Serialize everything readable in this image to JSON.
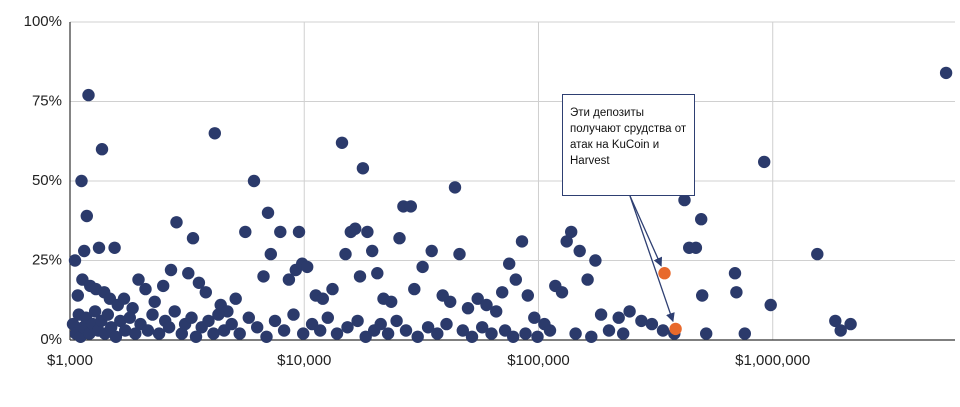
{
  "chart_data": {
    "type": "scatter",
    "title": "",
    "xlabel": "",
    "ylabel": "",
    "x_scale": "log",
    "xlim": [
      1000,
      6000000
    ],
    "ylim": [
      0,
      1
    ],
    "grid": true,
    "x_ticks": [
      {
        "value": 1000,
        "label": "$1,000"
      },
      {
        "value": 10000,
        "label": "$10,000"
      },
      {
        "value": 100000,
        "label": "$100,000"
      },
      {
        "value": 1000000,
        "label": "$1,000,000"
      }
    ],
    "y_ticks": [
      {
        "value": 0,
        "label": "0%"
      },
      {
        "value": 0.25,
        "label": "25%"
      },
      {
        "value": 0.5,
        "label": "50%"
      },
      {
        "value": 0.75,
        "label": "75%"
      },
      {
        "value": 1,
        "label": "100%"
      }
    ],
    "colors": {
      "deposits": "#2b3a6b",
      "highlight": "#e8692c",
      "grid": "#d0d0d0",
      "axis": "#333333"
    },
    "series": [
      {
        "color": "#2b3a6b",
        "points": [
          [
            1200,
            0.77
          ],
          [
            1120,
            0.5
          ],
          [
            1370,
            0.6
          ],
          [
            1180,
            0.39
          ],
          [
            1150,
            0.28
          ],
          [
            1050,
            0.25
          ],
          [
            1550,
            0.29
          ],
          [
            1330,
            0.29
          ],
          [
            1080,
            0.14
          ],
          [
            1130,
            0.19
          ],
          [
            1220,
            0.17
          ],
          [
            1290,
            0.16
          ],
          [
            1400,
            0.15
          ],
          [
            1480,
            0.13
          ],
          [
            1600,
            0.11
          ],
          [
            1700,
            0.13
          ],
          [
            1850,
            0.1
          ],
          [
            1960,
            0.19
          ],
          [
            2100,
            0.16
          ],
          [
            2300,
            0.12
          ],
          [
            2500,
            0.17
          ],
          [
            2700,
            0.22
          ],
          [
            2850,
            0.37
          ],
          [
            3200,
            0.21
          ],
          [
            3350,
            0.32
          ],
          [
            3550,
            0.18
          ],
          [
            3800,
            0.15
          ],
          [
            4150,
            0.65
          ],
          [
            4400,
            0.11
          ],
          [
            4700,
            0.09
          ],
          [
            5100,
            0.13
          ],
          [
            5600,
            0.34
          ],
          [
            6100,
            0.5
          ],
          [
            6700,
            0.2
          ],
          [
            7000,
            0.4
          ],
          [
            7200,
            0.27
          ],
          [
            7900,
            0.34
          ],
          [
            8600,
            0.19
          ],
          [
            9200,
            0.22
          ],
          [
            9500,
            0.34
          ],
          [
            9800,
            0.24
          ],
          [
            10300,
            0.23
          ],
          [
            11200,
            0.14
          ],
          [
            12000,
            0.13
          ],
          [
            13200,
            0.16
          ],
          [
            14500,
            0.62
          ],
          [
            15000,
            0.27
          ],
          [
            15800,
            0.34
          ],
          [
            16500,
            0.35
          ],
          [
            17300,
            0.2
          ],
          [
            17800,
            0.54
          ],
          [
            18600,
            0.34
          ],
          [
            19500,
            0.28
          ],
          [
            20500,
            0.21
          ],
          [
            21800,
            0.13
          ],
          [
            23500,
            0.12
          ],
          [
            25500,
            0.32
          ],
          [
            26500,
            0.42
          ],
          [
            28500,
            0.42
          ],
          [
            29500,
            0.16
          ],
          [
            32000,
            0.23
          ],
          [
            35000,
            0.28
          ],
          [
            39000,
            0.14
          ],
          [
            42000,
            0.12
          ],
          [
            44000,
            0.48
          ],
          [
            46000,
            0.27
          ],
          [
            50000,
            0.1
          ],
          [
            55000,
            0.13
          ],
          [
            60000,
            0.11
          ],
          [
            66000,
            0.09
          ],
          [
            70000,
            0.15
          ],
          [
            75000,
            0.24
          ],
          [
            80000,
            0.19
          ],
          [
            85000,
            0.31
          ],
          [
            90000,
            0.14
          ],
          [
            96000,
            0.07
          ],
          [
            106000,
            0.05
          ],
          [
            118000,
            0.17
          ],
          [
            126000,
            0.15
          ],
          [
            132000,
            0.31
          ],
          [
            138000,
            0.34
          ],
          [
            150000,
            0.28
          ],
          [
            162000,
            0.19
          ],
          [
            175000,
            0.25
          ],
          [
            185000,
            0.08
          ],
          [
            200000,
            0.03
          ],
          [
            220000,
            0.07
          ],
          [
            245000,
            0.09
          ],
          [
            275000,
            0.06
          ],
          [
            305000,
            0.05
          ],
          [
            340000,
            0.03
          ],
          [
            380000,
            0.02
          ],
          [
            420000,
            0.44
          ],
          [
            440000,
            0.29
          ],
          [
            470000,
            0.29
          ],
          [
            495000,
            0.38
          ],
          [
            500000,
            0.14
          ],
          [
            520000,
            0.02
          ],
          [
            690000,
            0.21
          ],
          [
            700000,
            0.15
          ],
          [
            760000,
            0.02
          ],
          [
            920000,
            0.56
          ],
          [
            980000,
            0.11
          ],
          [
            1550000,
            0.27
          ],
          [
            1850000,
            0.06
          ],
          [
            1950000,
            0.03
          ],
          [
            2150000,
            0.05
          ],
          [
            5500000,
            0.84
          ],
          [
            1030,
            0.05
          ],
          [
            1060,
            0.02
          ],
          [
            1090,
            0.08
          ],
          [
            1110,
            0.01
          ],
          [
            1140,
            0.04
          ],
          [
            1170,
            0.07
          ],
          [
            1210,
            0.02
          ],
          [
            1250,
            0.05
          ],
          [
            1280,
            0.09
          ],
          [
            1320,
            0.03
          ],
          [
            1360,
            0.06
          ],
          [
            1410,
            0.02
          ],
          [
            1450,
            0.08
          ],
          [
            1500,
            0.04
          ],
          [
            1570,
            0.01
          ],
          [
            1640,
            0.06
          ],
          [
            1720,
            0.03
          ],
          [
            1800,
            0.07
          ],
          [
            1900,
            0.02
          ],
          [
            2000,
            0.05
          ],
          [
            2150,
            0.03
          ],
          [
            2250,
            0.08
          ],
          [
            2400,
            0.02
          ],
          [
            2550,
            0.06
          ],
          [
            2650,
            0.04
          ],
          [
            2800,
            0.09
          ],
          [
            3000,
            0.02
          ],
          [
            3100,
            0.05
          ],
          [
            3300,
            0.07
          ],
          [
            3450,
            0.01
          ],
          [
            3650,
            0.04
          ],
          [
            3900,
            0.06
          ],
          [
            4100,
            0.02
          ],
          [
            4300,
            0.08
          ],
          [
            4550,
            0.03
          ],
          [
            4900,
            0.05
          ],
          [
            5300,
            0.02
          ],
          [
            5800,
            0.07
          ],
          [
            6300,
            0.04
          ],
          [
            6900,
            0.01
          ],
          [
            7500,
            0.06
          ],
          [
            8200,
            0.03
          ],
          [
            9000,
            0.08
          ],
          [
            9900,
            0.02
          ],
          [
            10800,
            0.05
          ],
          [
            11700,
            0.03
          ],
          [
            12600,
            0.07
          ],
          [
            13800,
            0.02
          ],
          [
            15300,
            0.04
          ],
          [
            16900,
            0.06
          ],
          [
            18300,
            0.01
          ],
          [
            19900,
            0.03
          ],
          [
            21200,
            0.05
          ],
          [
            22800,
            0.02
          ],
          [
            24800,
            0.06
          ],
          [
            27200,
            0.03
          ],
          [
            30500,
            0.01
          ],
          [
            33800,
            0.04
          ],
          [
            37000,
            0.02
          ],
          [
            40500,
            0.05
          ],
          [
            47500,
            0.03
          ],
          [
            52000,
            0.01
          ],
          [
            57500,
            0.04
          ],
          [
            63000,
            0.02
          ],
          [
            72000,
            0.03
          ],
          [
            78000,
            0.01
          ],
          [
            88000,
            0.02
          ],
          [
            99000,
            0.01
          ],
          [
            112000,
            0.03
          ],
          [
            144000,
            0.02
          ],
          [
            168000,
            0.01
          ],
          [
            230000,
            0.02
          ]
        ]
      },
      {
        "color": "#e8692c",
        "points": [
          [
            345000,
            0.21
          ],
          [
            385000,
            0.035
          ]
        ]
      }
    ],
    "annotation": {
      "lines": [
        "Эти депозиты",
        "получают срудства от",
        "атак на KuCoin и",
        "Harvest"
      ]
    }
  }
}
